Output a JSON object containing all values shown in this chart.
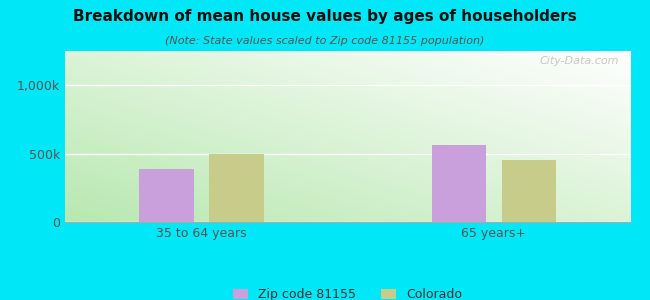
{
  "title": "Breakdown of mean house values by ages of householders",
  "subtitle": "(Note: State values scaled to Zip code 81155 population)",
  "categories": [
    "35 to 64 years",
    "65 years+"
  ],
  "zip_values": [
    390000,
    560000
  ],
  "state_values": [
    500000,
    455000
  ],
  "zip_color": "#c9a0dc",
  "state_color": "#c8cc8a",
  "bar_width": 0.28,
  "ylim": [
    0,
    1250000
  ],
  "yticks": [
    0,
    500000,
    1000000
  ],
  "ytick_labels": [
    "0",
    "500k",
    "1,000k"
  ],
  "background_outer": "#00e8f8",
  "legend_labels": [
    "Zip code 81155",
    "Colorado"
  ],
  "watermark": "City-Data.com",
  "group_positions": [
    1.0,
    2.5
  ],
  "xlim": [
    0.3,
    3.2
  ]
}
